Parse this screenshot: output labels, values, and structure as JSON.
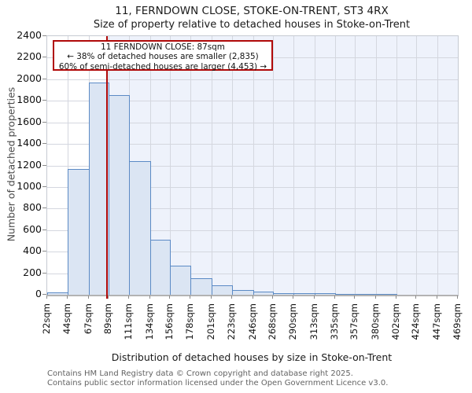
{
  "title": "11, FERNDOWN CLOSE, STOKE-ON-TRENT, ST3 4RX",
  "subtitle": "Size of property relative to detached houses in Stoke-on-Trent",
  "annotation": {
    "line1": "11 FERNDOWN CLOSE: 87sqm",
    "line2": "← 38% of detached houses are smaller (2,835)",
    "line3": "60% of semi-detached houses are larger (4,453) →"
  },
  "chart_data": {
    "type": "bar",
    "title": "11, FERNDOWN CLOSE, STOKE-ON-TRENT, ST3 4RX",
    "subtitle": "Size of property relative to detached houses in Stoke-on-Trent",
    "xlabel": "Distribution of detached houses by size in Stoke-on-Trent",
    "ylabel": "Number of detached properties",
    "bin_edges_sqm": [
      22,
      44,
      67,
      89,
      111,
      134,
      156,
      178,
      201,
      223,
      246,
      268,
      290,
      313,
      335,
      357,
      380,
      402,
      424,
      447,
      469
    ],
    "tick_labels": [
      "22sqm",
      "44sqm",
      "67sqm",
      "89sqm",
      "111sqm",
      "134sqm",
      "156sqm",
      "178sqm",
      "201sqm",
      "223sqm",
      "246sqm",
      "268sqm",
      "290sqm",
      "313sqm",
      "335sqm",
      "357sqm",
      "380sqm",
      "402sqm",
      "424sqm",
      "447sqm",
      "469sqm"
    ],
    "values": [
      25,
      1170,
      1970,
      1850,
      1240,
      510,
      270,
      150,
      85,
      45,
      30,
      18,
      12,
      12,
      10,
      10,
      8,
      0,
      0,
      0
    ],
    "ylim": [
      0,
      2400
    ],
    "ytick_step": 200,
    "marker_sqm": 87,
    "grid": true,
    "shade_above_marker": true,
    "colors": {
      "bar_fill": "#dbe5f3",
      "bar_edge": "#5b8ac5",
      "marker_red": "#b00909",
      "shade_bg": "#eef2fb",
      "gridline": "#d4d7df"
    }
  },
  "footer": {
    "line1": "Contains HM Land Registry data © Crown copyright and database right 2025.",
    "line2": "Contains public sector information licensed under the Open Government Licence v3.0."
  }
}
